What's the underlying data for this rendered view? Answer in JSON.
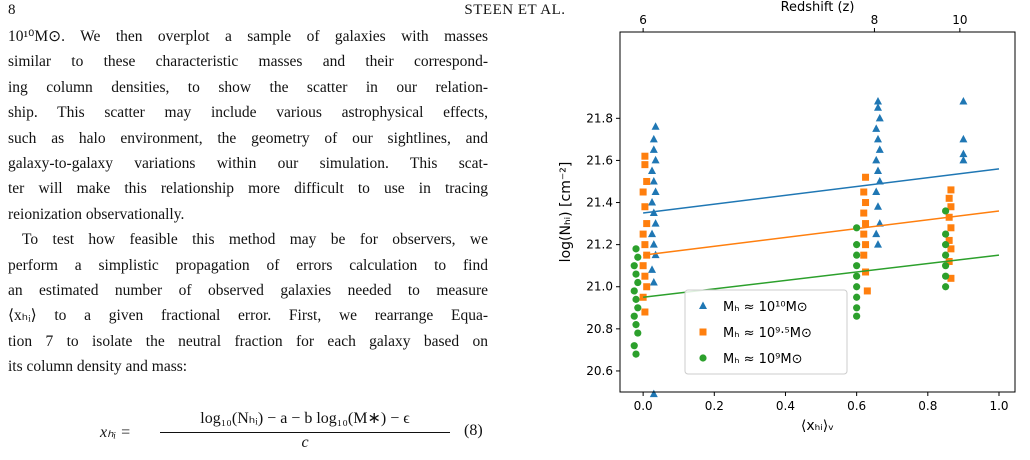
{
  "header": {
    "page": "8",
    "running_title": "STEEN ET AL."
  },
  "text": {
    "paragraphs": [
      {
        "lines": [
          "10¹⁰M⊙. We then overplot a sample of galaxies with masses",
          "similar to these characteristic masses and their correspond-",
          "ing column densities, to show the scatter in our relation-",
          "ship. This scatter may include various astrophysical effects,",
          "such as halo environment, the geometry of our sightlines, and",
          "galaxy-to-galaxy variations within our simulation. This scat-",
          "ter will make this relationship more difficult to use in tracing",
          "reionization observationally."
        ]
      },
      {
        "lines": [
          "To test how feasible this method may be for observers, we",
          "perform a simplistic propagation of errors calculation to find",
          "an estimated number of observed galaxies needed to measure",
          "⟨xₕᵢ⟩ to a given fractional error. First, we rearrange Equa-",
          "tion 7 to isolate the neutral fraction for each galaxy based on",
          "its column density and mass:"
        ]
      }
    ]
  },
  "equation": {
    "lhs": "xₕᵢ =",
    "numerator": "log₁₀(Nₕᵢ) − a − b log₁₀(M∗) − ϵ",
    "denominator": "c",
    "number": "(8)"
  },
  "chart_data": {
    "type": "scatter",
    "xlabel": "⟨xₕᵢ⟩ᵥ",
    "ylabel": "log(Nₕᵢ) [cm⁻²]",
    "xlim": [
      -0.065,
      1.045
    ],
    "ylim": [
      20.5,
      22.21
    ],
    "xticks": [
      {
        "value": 0,
        "label": "0.0"
      },
      0.2,
      0.4,
      0.6,
      0.8,
      {
        "value": 1,
        "label": "1.0"
      }
    ],
    "yticks": [
      20.6,
      20.8,
      {
        "value": 21,
        "label": "21.0"
      },
      21.2,
      21.4,
      21.6,
      21.8
    ],
    "grid": false,
    "legend": "lower left",
    "x2axis": {
      "label": "Redshift (z)",
      "ticks": [
        6,
        8,
        10
      ],
      "tick_positions": [
        0.0,
        0.65,
        0.89
      ]
    },
    "series": [
      {
        "name": "Mₕ ≈ 10¹⁰M⊙",
        "color": "#1f77b4",
        "marker": "triangle",
        "x": [
          0.03,
          0.03,
          0.025,
          0.035,
          0.03,
          0.025,
          0.035,
          0.03,
          0.025,
          0.035,
          0.03,
          0.025,
          0.035,
          0.03,
          0.03,
          0.035,
          0.66,
          0.655,
          0.665,
          0.66,
          0.655,
          0.665,
          0.66,
          0.655,
          0.665,
          0.66,
          0.655,
          0.665,
          0.66,
          0.66,
          0.9,
          0.9,
          0.9,
          0.9
        ],
        "values": [
          20.49,
          21.02,
          21.08,
          21.15,
          21.2,
          21.25,
          21.3,
          21.35,
          21.4,
          21.45,
          21.5,
          21.55,
          21.6,
          21.65,
          21.7,
          21.76,
          21.2,
          21.25,
          21.3,
          21.38,
          21.45,
          21.5,
          21.55,
          21.6,
          21.65,
          21.7,
          21.75,
          21.8,
          21.85,
          21.88,
          21.6,
          21.63,
          21.7,
          21.88
        ],
        "fit": {
          "x": [
            0,
            1
          ],
          "values": [
            21.35,
            21.56
          ]
        }
      },
      {
        "name": "Mₕ ≈ 10⁹·⁵M⊙",
        "color": "#ff7f0e",
        "marker": "square",
        "x": [
          0.005,
          0.0,
          0.01,
          0.005,
          0.0,
          0.01,
          0.005,
          0.0,
          0.01,
          0.005,
          0.0,
          0.01,
          0.005,
          0.005,
          0.63,
          0.625,
          0.62,
          0.625,
          0.62,
          0.625,
          0.62,
          0.625,
          0.62,
          0.625,
          0.865,
          0.86,
          0.865,
          0.86,
          0.865,
          0.86,
          0.865,
          0.86,
          0.865
        ],
        "values": [
          20.88,
          20.95,
          21.0,
          21.05,
          21.1,
          21.15,
          21.2,
          21.25,
          21.3,
          21.38,
          21.45,
          21.5,
          21.58,
          21.62,
          20.98,
          21.07,
          21.15,
          21.2,
          21.25,
          21.3,
          21.35,
          21.4,
          21.45,
          21.52,
          21.04,
          21.12,
          21.18,
          21.22,
          21.28,
          21.33,
          21.38,
          21.42,
          21.46
        ],
        "fit": {
          "x": [
            0,
            1
          ],
          "values": [
            21.15,
            21.36
          ]
        }
      },
      {
        "name": "Mₕ ≈ 10⁹M⊙",
        "color": "#2ca02c",
        "marker": "circle",
        "x": [
          -0.02,
          -0.025,
          -0.015,
          -0.02,
          -0.025,
          -0.015,
          -0.02,
          -0.025,
          -0.015,
          -0.02,
          -0.025,
          -0.015,
          -0.02,
          0.6,
          0.6,
          0.6,
          0.6,
          0.6,
          0.6,
          0.6,
          0.6,
          0.6,
          0.85,
          0.85,
          0.85,
          0.85,
          0.85,
          0.85,
          0.85
        ],
        "values": [
          20.68,
          20.72,
          20.78,
          20.82,
          20.86,
          20.9,
          20.94,
          20.98,
          21.02,
          21.06,
          21.1,
          21.14,
          21.18,
          20.86,
          20.9,
          20.95,
          21.0,
          21.05,
          21.1,
          21.15,
          21.2,
          21.28,
          21.0,
          21.05,
          21.1,
          21.15,
          21.2,
          21.25,
          21.36
        ],
        "fit": {
          "x": [
            0,
            1
          ],
          "values": [
            20.95,
            21.15
          ]
        }
      }
    ]
  }
}
